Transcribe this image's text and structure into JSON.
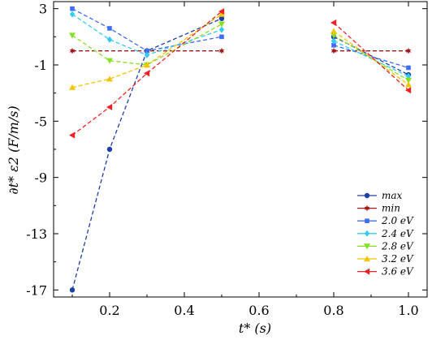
{
  "chart_data": {
    "type": "line",
    "xlabel": "t* (s)",
    "ylabel": "∂t* ε2 (F/m/s)",
    "xlim": [
      0.05,
      1.05
    ],
    "ylim": [
      -17.5,
      3.5
    ],
    "xticks": [
      0.2,
      0.4,
      0.6,
      0.8,
      1.0
    ],
    "xtick_labels": [
      "0.2",
      "0.4",
      "0.6",
      "0.8",
      "1.0"
    ],
    "yticks": [
      3,
      -1,
      -5,
      -9,
      -13,
      -17
    ],
    "ytick_labels": [
      "3",
      "-1",
      "-5",
      "-9",
      "-13",
      "-17"
    ],
    "grid": false,
    "legend_position": "bottom-right",
    "series": [
      {
        "name": "max",
        "color": "#1f3fa8",
        "marker": "circle",
        "segments": [
          [
            [
              0.1,
              -17.0
            ],
            [
              0.2,
              -7.0
            ],
            [
              0.3,
              0.0
            ],
            [
              0.5,
              2.3
            ]
          ],
          [
            [
              0.8,
              1.0
            ],
            [
              1.0,
              -1.7
            ]
          ]
        ]
      },
      {
        "name": "min",
        "color": "#a01818",
        "marker": "star",
        "segments": [
          [
            [
              0.1,
              0.0
            ],
            [
              0.3,
              0.0
            ],
            [
              0.5,
              0.0
            ]
          ],
          [
            [
              0.8,
              0.0
            ],
            [
              1.0,
              0.0
            ]
          ]
        ]
      },
      {
        "name": "2.0 eV",
        "color": "#3f6cf5",
        "marker": "square",
        "segments": [
          [
            [
              0.1,
              3.0
            ],
            [
              0.2,
              1.6
            ],
            [
              0.3,
              0.0
            ],
            [
              0.5,
              1.0
            ]
          ],
          [
            [
              0.8,
              0.4
            ],
            [
              1.0,
              -1.2
            ]
          ]
        ]
      },
      {
        "name": "2.4 eV",
        "color": "#33ccee",
        "marker": "diamond",
        "segments": [
          [
            [
              0.1,
              2.6
            ],
            [
              0.2,
              0.8
            ],
            [
              0.3,
              -0.3
            ],
            [
              0.5,
              1.5
            ]
          ],
          [
            [
              0.8,
              0.7
            ],
            [
              1.0,
              -1.8
            ]
          ]
        ]
      },
      {
        "name": "2.8 eV",
        "color": "#88e025",
        "marker": "triangle-down",
        "segments": [
          [
            [
              0.1,
              1.1
            ],
            [
              0.2,
              -0.7
            ],
            [
              0.3,
              -1.0
            ],
            [
              0.5,
              1.9
            ]
          ],
          [
            [
              0.8,
              1.1
            ],
            [
              1.0,
              -2.1
            ]
          ]
        ]
      },
      {
        "name": "3.2 eV",
        "color": "#f5c400",
        "marker": "triangle-up",
        "segments": [
          [
            [
              0.1,
              -2.6
            ],
            [
              0.2,
              -2.0
            ],
            [
              0.3,
              -1.0
            ],
            [
              0.5,
              2.6
            ]
          ],
          [
            [
              0.8,
              1.4
            ],
            [
              1.0,
              -2.4
            ]
          ]
        ]
      },
      {
        "name": "3.6 eV",
        "color": "#ee2222",
        "marker": "triangle-left",
        "segments": [
          [
            [
              0.1,
              -6.0
            ],
            [
              0.2,
              -4.0
            ],
            [
              0.3,
              -1.6
            ],
            [
              0.5,
              2.8
            ]
          ],
          [
            [
              0.8,
              2.0
            ],
            [
              1.0,
              -2.8
            ]
          ]
        ]
      }
    ]
  }
}
